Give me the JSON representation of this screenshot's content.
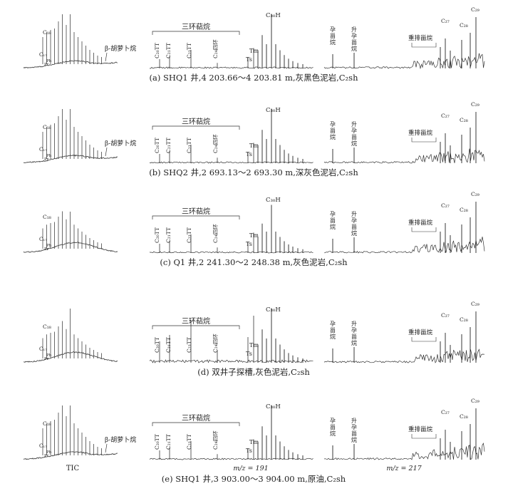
{
  "chart_data": {
    "type": "line",
    "description_free": true,
    "bottom_labels": {
      "tic": "TIC",
      "m191": "m/z = 191",
      "m217": "m/z = 217"
    },
    "panels": [
      {
        "id": "a",
        "caption": "(a) SHQ1 井,4 203.66～4 203.81 m,灰黑色泥岩,C₂sh",
        "tic": {
          "peaks_labels": [
            "C₁₈",
            "C₁₇",
            "Ph",
            "Pr"
          ],
          "annotation": "β-胡萝卜烷"
        },
        "m191": {
          "group": "三环萜烷",
          "peaks": [
            "C₂₀TT",
            "C₂₁TT",
            "C₂₃TT",
            "C₂₄四环"
          ],
          "other": [
            "Ts",
            "Tm",
            "C₃₀H"
          ]
        },
        "m217": {
          "labels": [
            "孕甾烷",
            "升孕甾烷",
            "重排甾烷",
            "C₂₇",
            "C₂₈",
            "C₂₉"
          ]
        }
      },
      {
        "id": "b",
        "caption": "(b) SHQ2 井,2 693.13～2 693.30 m,深灰色泥岩,C₂sh",
        "tic": {
          "peaks_labels": [
            "C₁₈",
            "C₁₇",
            "Ph",
            "Pr"
          ],
          "annotation": "β-胡萝卜烷"
        },
        "m191": {
          "group": "三环萜烷",
          "peaks": [
            "C₂₀TT",
            "C₂₁TT",
            "C₂₃TT",
            "C₂₄四环"
          ],
          "other": [
            "Ts",
            "Tm",
            "C₃₀H"
          ]
        },
        "m217": {
          "labels": [
            "孕甾烷",
            "升孕甾烷",
            "重排甾烷",
            "C₂₇",
            "C₂₈",
            "C₂₉"
          ]
        }
      },
      {
        "id": "c",
        "caption": "(c) Q1 井,2 241.30～2 248.38 m,灰色泥岩,C₂sh",
        "tic": {
          "peaks_labels": [
            "C₁₈",
            "C₁₇",
            "Ph",
            "Pr"
          ],
          "annotation": ""
        },
        "m191": {
          "group": "三环萜烷",
          "peaks": [
            "C₂₀TT",
            "C₂₁TT",
            "C₂₃TT",
            "C₂₄四环"
          ],
          "other": [
            "Ts",
            "Tm",
            "C₃₀H"
          ]
        },
        "m217": {
          "labels": [
            "孕甾烷",
            "升孕甾烷",
            "重排甾烷",
            "C₂₇",
            "C₂₈",
            "C₂₉"
          ]
        }
      },
      {
        "id": "d",
        "caption": "(d) 双井子探槽,灰色泥岩,C₂sh",
        "tic": {
          "peaks_labels": [
            "C₁₈",
            "C₁₇",
            "Ph",
            "Pr"
          ],
          "annotation": ""
        },
        "m191": {
          "group": "三环萜烷",
          "peaks": [
            "C₂₀TT",
            "C₂₁TT",
            "C₂₃TT",
            "C₂₄四环"
          ],
          "other": [
            "Ts",
            "Tm",
            "C₃₀H"
          ]
        },
        "m217": {
          "labels": [
            "孕甾烷",
            "升孕甾烷",
            "重排甾烷",
            "C₂₇",
            "C₂₈",
            "C₂₉"
          ]
        }
      },
      {
        "id": "e",
        "caption": "(e) SHQ1 井,3 903.00～3 904.00 m,原油,C₂sh",
        "tic": {
          "peaks_labels": [
            "C₁₈",
            "C₁₇",
            "Ph",
            "Pr"
          ],
          "annotation": "β-胡萝卜烷"
        },
        "m191": {
          "group": "三环萜烷",
          "peaks": [
            "C₂₀TT",
            "C₂₁TT",
            "C₂₃TT",
            "C₂₄四环"
          ],
          "other": [
            "Ts",
            "Tm",
            "C₃₀H"
          ]
        },
        "m217": {
          "labels": [
            "孕甾烷",
            "升孕甾烷",
            "重排甾烷",
            "C₂₇",
            "C₂₈",
            "C₂₉"
          ]
        }
      }
    ]
  }
}
